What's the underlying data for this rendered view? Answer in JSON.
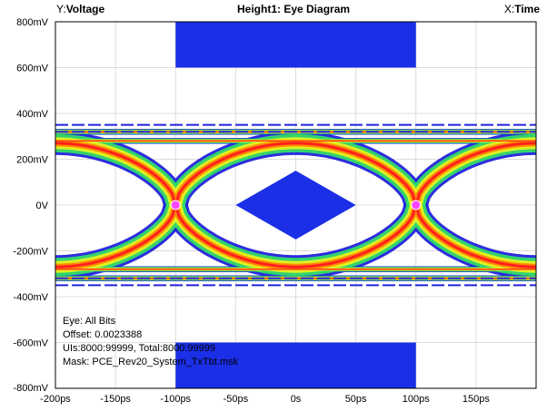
{
  "header": {
    "y_prefix": "Y:",
    "y_name": "Voltage",
    "title": "Height1: Eye Diagram",
    "x_prefix": "X:",
    "x_name": "Time"
  },
  "info": {
    "lines": [
      "Eye: All Bits",
      "Offset: 0.0023388",
      "UIs:8000:99999, Total:8000:99999",
      "Mask: PCE_Rev20_System_TxTbt.msk"
    ]
  },
  "colors": {
    "mask": "#1a2fe6",
    "trace_outer": "#2222dd",
    "trace_green": "#33dd66",
    "trace_yellow": "#e8f020",
    "trace_orange": "#ff8a00",
    "trace_red": "#ff2020",
    "crossing": "#ff44ff",
    "grid": "#dcdcdc"
  },
  "chart_data": {
    "type": "eye-diagram",
    "title": "Height1: Eye Diagram",
    "xlabel": "Time",
    "ylabel": "Voltage",
    "xlim": [
      -200,
      200
    ],
    "ylim": [
      -800,
      800
    ],
    "x_unit": "ps",
    "y_unit": "mV",
    "grid": true,
    "x_ticks": [
      {
        "value": -200,
        "label": "-200ps"
      },
      {
        "value": -150,
        "label": "-150ps"
      },
      {
        "value": -100,
        "label": "-100ps"
      },
      {
        "value": -50,
        "label": "-50ps"
      },
      {
        "value": 0,
        "label": "0s"
      },
      {
        "value": 50,
        "label": "50ps"
      },
      {
        "value": 100,
        "label": "100ps"
      },
      {
        "value": 150,
        "label": "150ps"
      }
    ],
    "y_ticks": [
      {
        "value": 800,
        "label": "800mV"
      },
      {
        "value": 600,
        "label": "600mV"
      },
      {
        "value": 400,
        "label": "400mV"
      },
      {
        "value": 200,
        "label": "200mV"
      },
      {
        "value": 0,
        "label": "0V"
      },
      {
        "value": -200,
        "label": "-200mV"
      },
      {
        "value": -400,
        "label": "-400mV"
      },
      {
        "value": -600,
        "label": "-600mV"
      },
      {
        "value": -800,
        "label": "-800mV"
      }
    ],
    "crossings": [
      {
        "t": -100,
        "v": 0
      },
      {
        "t": 100,
        "v": 0
      }
    ],
    "levels": {
      "high_mean": 290,
      "low_mean": -290,
      "eye_peak": 270,
      "outer_max": 350,
      "outer_min": -350
    },
    "mask": {
      "center_polygon": [
        [
          -50,
          0
        ],
        [
          0,
          150
        ],
        [
          50,
          0
        ],
        [
          0,
          -150
        ]
      ],
      "top_region": {
        "t": [
          -100,
          100
        ],
        "v": [
          600,
          800
        ]
      },
      "bottom_region": {
        "t": [
          -100,
          100
        ],
        "v": [
          -800,
          -600
        ]
      }
    }
  }
}
